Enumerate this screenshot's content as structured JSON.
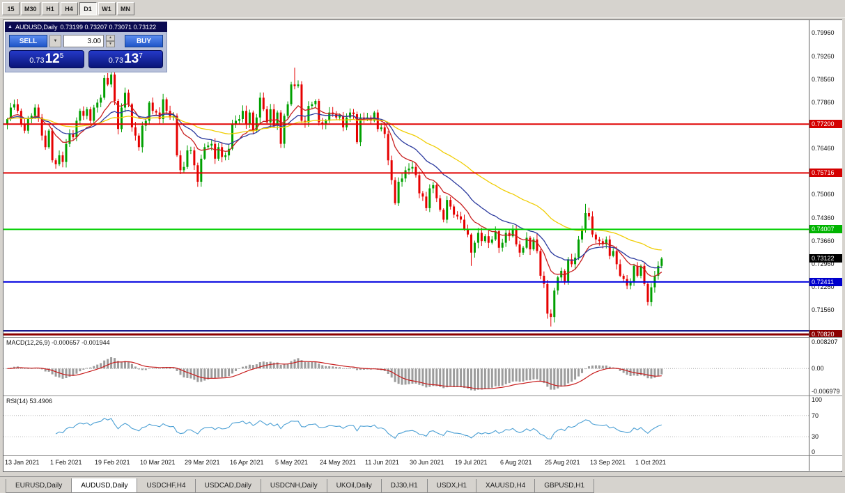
{
  "toolbar": {
    "periods": [
      {
        "label": "15",
        "active": false
      },
      {
        "label": "M30",
        "active": false
      },
      {
        "label": "H1",
        "active": false
      },
      {
        "label": "H4",
        "active": false
      },
      {
        "label": "D1",
        "active": true
      },
      {
        "label": "W1",
        "active": false
      },
      {
        "label": "MN",
        "active": false
      }
    ]
  },
  "icons": {
    "collapse": "▲",
    "dropdown": "▼",
    "spin_up": "▲",
    "spin_down": "▼"
  },
  "one_click": {
    "symbol": "AUDUSD,Daily",
    "ohlc": "0.73199 0.73207 0.73071 0.73122",
    "sell_label": "SELL",
    "buy_label": "BUY",
    "volume": "3.00",
    "sell_price": {
      "prefix": "0.73",
      "big": "12",
      "sup": "5"
    },
    "buy_price": {
      "prefix": "0.73",
      "big": "13",
      "sup": "7"
    }
  },
  "chart_data": {
    "type": "candlestick",
    "symbol": "AUDUSD",
    "timeframe": "Daily",
    "ohlc_display": {
      "open": "0.73199",
      "high": "0.73207",
      "low": "0.73071",
      "close": "0.73122"
    },
    "first_open": 0.772,
    "closes": [
      0.7735,
      0.777,
      0.778,
      0.776,
      0.772,
      0.77,
      0.7735,
      0.7745,
      0.777,
      0.774,
      0.7685,
      0.765,
      0.77,
      0.761,
      0.7598,
      0.7625,
      0.7605,
      0.766,
      0.769,
      0.768,
      0.773,
      0.776,
      0.7745,
      0.7765,
      0.773,
      0.777,
      0.7785,
      0.78,
      0.786,
      0.784,
      0.787,
      0.779,
      0.7705,
      0.777,
      0.7815,
      0.778,
      0.771,
      0.7685,
      0.765,
      0.7715,
      0.773,
      0.7785,
      0.776,
      0.7755,
      0.7735,
      0.7795,
      0.776,
      0.774,
      0.7745,
      0.7625,
      0.758,
      0.759,
      0.764,
      0.764,
      0.7595,
      0.7545,
      0.7615,
      0.765,
      0.7655,
      0.766,
      0.7615,
      0.765,
      0.762,
      0.7625,
      0.7645,
      0.772,
      0.773,
      0.7735,
      0.776,
      0.772,
      0.7755,
      0.77,
      0.774,
      0.78,
      0.7765,
      0.7725,
      0.7765,
      0.7715,
      0.7755,
      0.766,
      0.7745,
      0.778,
      0.784,
      0.7835,
      0.784,
      0.773,
      0.7725,
      0.7775,
      0.778,
      0.779,
      0.7725,
      0.772,
      0.773,
      0.7755,
      0.775,
      0.774,
      0.7745,
      0.771,
      0.774,
      0.7755,
      0.775,
      0.7665,
      0.774,
      0.7735,
      0.774,
      0.773,
      0.7755,
      0.7705,
      0.771,
      0.769,
      0.761,
      0.755,
      0.748,
      0.7545,
      0.7555,
      0.758,
      0.7585,
      0.759,
      0.7565,
      0.751,
      0.75,
      0.7465,
      0.7525,
      0.7535,
      0.7495,
      0.746,
      0.743,
      0.749,
      0.747,
      0.7445,
      0.744,
      0.743,
      0.74,
      0.7385,
      0.733,
      0.736,
      0.739,
      0.7365,
      0.738,
      0.736,
      0.737,
      0.7395,
      0.7345,
      0.736,
      0.739,
      0.738,
      0.74,
      0.7355,
      0.733,
      0.7345,
      0.7375,
      0.734,
      0.737,
      0.7335,
      0.726,
      0.7235,
      0.7145,
      0.7135,
      0.7215,
      0.7255,
      0.7275,
      0.724,
      0.731,
      0.7295,
      0.7315,
      0.737,
      0.74,
      0.745,
      0.744,
      0.7385,
      0.737,
      0.7365,
      0.7355,
      0.737,
      0.732,
      0.7335,
      0.7295,
      0.726,
      0.725,
      0.723,
      0.724,
      0.729,
      0.726,
      0.729,
      0.7235,
      0.718,
      0.7225,
      0.726,
      0.729,
      0.7312
    ],
    "wick_overrides": {
      "30": {
        "h": 0.7895
      },
      "83": {
        "h": 0.7891
      },
      "112": {
        "l": 0.7478
      },
      "134": {
        "l": 0.729
      },
      "157": {
        "l": 0.7106
      },
      "167": {
        "h": 0.7478
      },
      "185": {
        "l": 0.717
      }
    },
    "colors": {
      "up": "#00a000",
      "down": "#e60000"
    },
    "y_axis": {
      "range": [
        0.7072,
        0.8035
      ],
      "ticks": [
        {
          "label": "0.79960",
          "value": 0.7996
        },
        {
          "label": "0.79260",
          "value": 0.7926
        },
        {
          "label": "0.78560",
          "value": 0.7856
        },
        {
          "label": "0.77860",
          "value": 0.7786
        },
        {
          "label": "0.76460",
          "value": 0.7646
        },
        {
          "label": "0.75060",
          "value": 0.7506
        },
        {
          "label": "0.74360",
          "value": 0.7436
        },
        {
          "label": "0.73660",
          "value": 0.7366
        },
        {
          "label": "0.72960",
          "value": 0.7296
        },
        {
          "label": "0.72260",
          "value": 0.7226
        },
        {
          "label": "0.71560",
          "value": 0.7156
        }
      ]
    },
    "hlines": [
      {
        "value": 0.772,
        "label": "0.77200",
        "color": "#e00000",
        "width": 2,
        "badge": true,
        "badge_color": "#d40000"
      },
      {
        "value": 0.75716,
        "label": "0.75716",
        "color": "#e00000",
        "width": 2,
        "badge": true,
        "badge_color": "#d40000"
      },
      {
        "value": 0.74007,
        "label": "0.74007",
        "color": "#00ce00",
        "width": 2,
        "badge": true,
        "badge_color": "#00b400"
      },
      {
        "value": 0.72411,
        "label": "0.72411",
        "color": "#0000e0",
        "width": 2,
        "badge": true,
        "badge_color": "#0000cc"
      },
      {
        "value": 0.7093,
        "label": "",
        "color": "#000080",
        "width": 2,
        "badge": false
      },
      {
        "value": 0.7082,
        "label": "0.70820",
        "color": "#8b0000",
        "width": 3,
        "badge": true,
        "badge_color": "#8b0000"
      }
    ],
    "current_price": {
      "value": 0.73122,
      "label": "0.73122",
      "badge_color": "#000000"
    },
    "moving_averages": [
      {
        "period": 12,
        "color": "#c81e1e"
      },
      {
        "period": 24,
        "color": "#2b3a9e"
      },
      {
        "period": 55,
        "color": "#f0cd02"
      }
    ],
    "macd": {
      "label": "MACD(12,26,9)",
      "values_text": "-0.000657 -0.001944",
      "fast": 12,
      "slow": 26,
      "signal": 9,
      "range": [
        -0.0085,
        0.0095
      ],
      "hist_color": "#9c9c9c",
      "signal_color": "#c81e1e",
      "axis": [
        {
          "label": "0.008207",
          "value": 0.008207
        },
        {
          "label": "0.00",
          "value": 0
        },
        {
          "label": "-0.006979",
          "value": -0.006979
        }
      ]
    },
    "rsi": {
      "label": "RSI(14)",
      "value_text": "53.4906",
      "period": 14,
      "color": "#4a9fd4",
      "levels": [
        70,
        30
      ],
      "axis": [
        {
          "label": "100",
          "value": 100
        },
        {
          "label": "70",
          "value": 70
        },
        {
          "label": "30",
          "value": 30
        },
        {
          "label": "0",
          "value": 0
        }
      ]
    },
    "date_labels": [
      {
        "label": "13 Jan 2021",
        "index": 0
      },
      {
        "label": "1 Feb 2021",
        "index": 13
      },
      {
        "label": "19 Feb 2021",
        "index": 26
      },
      {
        "label": "10 Mar 2021",
        "index": 39
      },
      {
        "label": "29 Mar 2021",
        "index": 52
      },
      {
        "label": "16 Apr 2021",
        "index": 65
      },
      {
        "label": "5 May 2021",
        "index": 78
      },
      {
        "label": "24 May 2021",
        "index": 91
      },
      {
        "label": "11 Jun 2021",
        "index": 104
      },
      {
        "label": "30 Jun 2021",
        "index": 117
      },
      {
        "label": "19 Jul 2021",
        "index": 130
      },
      {
        "label": "6 Aug 2021",
        "index": 143
      },
      {
        "label": "25 Aug 2021",
        "index": 156
      },
      {
        "label": "13 Sep 2021",
        "index": 169
      },
      {
        "label": "1 Oct 2021",
        "index": 182
      }
    ]
  },
  "tabs": [
    {
      "label": "EURUSD,Daily",
      "active": false
    },
    {
      "label": "AUDUSD,Daily",
      "active": true
    },
    {
      "label": "USDCHF,H4",
      "active": false
    },
    {
      "label": "USDCAD,Daily",
      "active": false
    },
    {
      "label": "USDCNH,Daily",
      "active": false
    },
    {
      "label": "UKOil,Daily",
      "active": false
    },
    {
      "label": "DJ30,H1",
      "active": false
    },
    {
      "label": "USDX,H1",
      "active": false
    },
    {
      "label": "XAUUSD,H4",
      "active": false
    },
    {
      "label": "GBPUSD,H1",
      "active": false
    }
  ]
}
